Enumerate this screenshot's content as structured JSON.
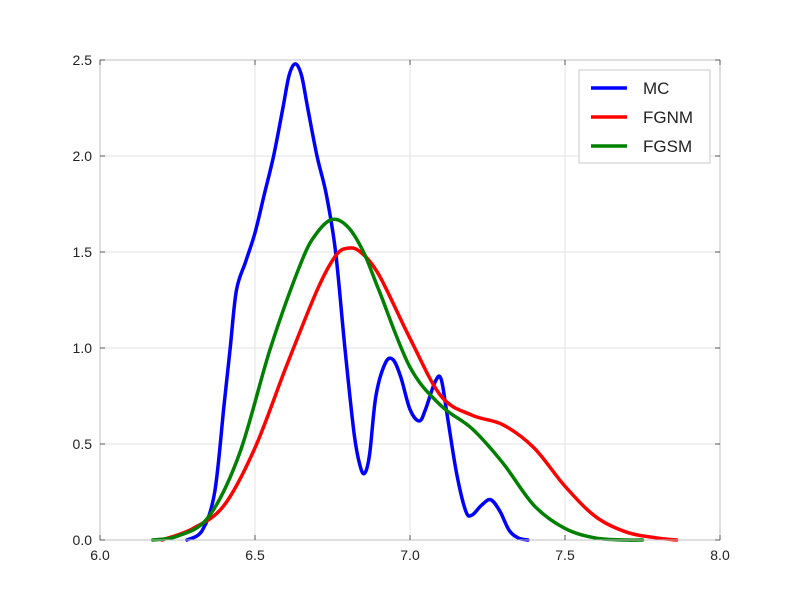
{
  "chart_data": {
    "type": "line",
    "title": "",
    "xlabel": "",
    "ylabel": "",
    "xlim": [
      6.0,
      8.0
    ],
    "ylim": [
      0.0,
      2.5
    ],
    "xticks": [
      6.0,
      6.5,
      7.0,
      7.5,
      8.0
    ],
    "xtick_labels": [
      "6.0",
      "6.5",
      "7.0",
      "7.5",
      "8.0"
    ],
    "yticks": [
      0.0,
      0.5,
      1.0,
      1.5,
      2.0,
      2.5
    ],
    "ytick_labels": [
      "0.0",
      "0.5",
      "1.0",
      "1.5",
      "2.0",
      "2.5"
    ],
    "grid": true,
    "legend_position": "top-right",
    "series": [
      {
        "name": "MC",
        "color": "#0000ff",
        "x": [
          6.28,
          6.33,
          6.37,
          6.4,
          6.42,
          6.44,
          6.47,
          6.5,
          6.53,
          6.56,
          6.59,
          6.61,
          6.63,
          6.65,
          6.67,
          6.7,
          6.73,
          6.76,
          6.79,
          6.82,
          6.84,
          6.855,
          6.87,
          6.89,
          6.92,
          6.945,
          6.97,
          7.0,
          7.03,
          7.05,
          7.08,
          7.1,
          7.12,
          7.15,
          7.18,
          7.2,
          7.23,
          7.26,
          7.29,
          7.32,
          7.35,
          7.38
        ],
        "y": [
          0.0,
          0.05,
          0.25,
          0.7,
          1.0,
          1.3,
          1.45,
          1.6,
          1.8,
          2.0,
          2.25,
          2.42,
          2.48,
          2.42,
          2.25,
          2.0,
          1.8,
          1.5,
          1.0,
          0.55,
          0.38,
          0.35,
          0.45,
          0.75,
          0.92,
          0.94,
          0.85,
          0.68,
          0.62,
          0.68,
          0.82,
          0.84,
          0.65,
          0.35,
          0.15,
          0.13,
          0.18,
          0.21,
          0.15,
          0.05,
          0.01,
          0.0
        ]
      },
      {
        "name": "FGNM",
        "color": "#ff0000",
        "x": [
          6.2,
          6.3,
          6.4,
          6.5,
          6.6,
          6.7,
          6.76,
          6.8,
          6.84,
          6.9,
          7.0,
          7.1,
          7.2,
          7.3,
          7.4,
          7.5,
          7.6,
          7.7,
          7.8,
          7.86
        ],
        "y": [
          0.0,
          0.06,
          0.18,
          0.48,
          0.9,
          1.3,
          1.48,
          1.52,
          1.5,
          1.38,
          1.05,
          0.75,
          0.65,
          0.6,
          0.48,
          0.28,
          0.12,
          0.04,
          0.01,
          0.0
        ]
      },
      {
        "name": "FGSM",
        "color": "#008000",
        "x": [
          6.17,
          6.25,
          6.35,
          6.45,
          6.55,
          6.65,
          6.7,
          6.75,
          6.8,
          6.85,
          6.9,
          7.0,
          7.1,
          7.2,
          7.3,
          7.4,
          7.5,
          7.6,
          7.7,
          7.75
        ],
        "y": [
          0.0,
          0.02,
          0.12,
          0.45,
          1.0,
          1.45,
          1.6,
          1.67,
          1.63,
          1.5,
          1.3,
          0.9,
          0.7,
          0.58,
          0.4,
          0.18,
          0.06,
          0.01,
          0.0,
          0.0
        ]
      }
    ]
  }
}
